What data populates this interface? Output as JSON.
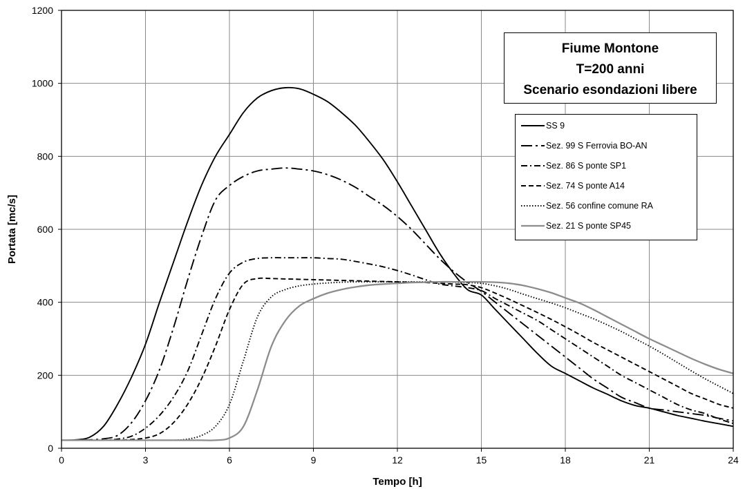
{
  "chart_data": {
    "type": "line",
    "title_lines": [
      "Fiume Montone",
      "T=200 anni",
      "Scenario esondazioni libere"
    ],
    "xlabel": "Tempo [h]",
    "ylabel": "Portata [mc/s]",
    "xlim": [
      0,
      24
    ],
    "ylim": [
      0,
      1200
    ],
    "xticks": [
      0,
      3,
      6,
      9,
      12,
      15,
      18,
      21,
      24
    ],
    "yticks": [
      0,
      200,
      400,
      600,
      800,
      1000,
      1200
    ],
    "grid": true,
    "legend_position": "top-right",
    "x": [
      0,
      0.5,
      1,
      1.5,
      2,
      2.5,
      3,
      3.5,
      4,
      4.5,
      5,
      5.5,
      6,
      6.5,
      7,
      7.5,
      8,
      8.5,
      9,
      9.5,
      10,
      10.5,
      11,
      11.5,
      12,
      12.5,
      13,
      13.5,
      14,
      14.5,
      15,
      15.5,
      16,
      16.5,
      17,
      17.5,
      18,
      18.5,
      19,
      19.5,
      20,
      20.5,
      21,
      21.5,
      22,
      22.5,
      23,
      23.5,
      24
    ],
    "series": [
      {
        "name": "SS 9",
        "color": "#000000",
        "dash": "solid",
        "values": [
          22,
          23,
          30,
          60,
          120,
          195,
          285,
          400,
          510,
          620,
          720,
          800,
          860,
          920,
          960,
          980,
          988,
          985,
          970,
          950,
          920,
          885,
          840,
          790,
          730,
          665,
          600,
          535,
          480,
          435,
          420,
          380,
          340,
          300,
          260,
          225,
          205,
          185,
          165,
          148,
          130,
          117,
          110,
          100,
          90,
          82,
          74,
          67,
          60
        ]
      },
      {
        "name": "Sez. 99 S Ferrovia BO-AN",
        "color": "#000000",
        "dash": "longdash-dot",
        "values": [
          22,
          22,
          23,
          26,
          35,
          70,
          130,
          215,
          330,
          460,
          580,
          680,
          720,
          745,
          760,
          765,
          768,
          765,
          760,
          750,
          735,
          715,
          690,
          665,
          635,
          600,
          560,
          520,
          485,
          455,
          430,
          400,
          370,
          340,
          310,
          280,
          250,
          220,
          190,
          165,
          140,
          125,
          110,
          105,
          100,
          95,
          90,
          82,
          75
        ]
      },
      {
        "name": "Sez. 86 S ponte SP1",
        "color": "#000000",
        "dash": "dashdot",
        "values": [
          22,
          22,
          22,
          22,
          25,
          33,
          55,
          90,
          140,
          210,
          310,
          410,
          480,
          510,
          520,
          522,
          522,
          522,
          522,
          520,
          518,
          512,
          505,
          497,
          487,
          475,
          462,
          450,
          445,
          440,
          432,
          410,
          390,
          370,
          350,
          325,
          300,
          275,
          250,
          225,
          200,
          180,
          160,
          140,
          120,
          105,
          95,
          80,
          68
        ]
      },
      {
        "name": "Sez. 74 S ponte A14",
        "color": "#000000",
        "dash": "dash",
        "values": [
          22,
          22,
          22,
          22,
          22,
          24,
          28,
          40,
          70,
          120,
          190,
          280,
          380,
          450,
          465,
          465,
          464,
          463,
          462,
          461,
          460,
          459,
          458,
          457,
          456,
          455,
          454,
          452,
          450,
          448,
          440,
          425,
          408,
          390,
          372,
          353,
          333,
          312,
          290,
          270,
          250,
          230,
          210,
          190,
          170,
          150,
          135,
          120,
          110
        ]
      },
      {
        "name": "Sez. 56 confine comune RA",
        "color": "#000000",
        "dash": "dot",
        "values": [
          22,
          22,
          22,
          22,
          22,
          22,
          22,
          22,
          22,
          25,
          35,
          60,
          120,
          240,
          360,
          415,
          435,
          445,
          450,
          453,
          455,
          456,
          456,
          456,
          456,
          456,
          456,
          456,
          455,
          454,
          452,
          445,
          435,
          422,
          410,
          398,
          385,
          370,
          355,
          338,
          320,
          300,
          280,
          258,
          235,
          212,
          190,
          170,
          150
        ]
      },
      {
        "name": "Sez. 21 S ponte SP45",
        "color": "#8c8c8c",
        "dash": "solid",
        "values": [
          22,
          22,
          22,
          22,
          22,
          22,
          22,
          22,
          22,
          22,
          22,
          22,
          28,
          60,
          160,
          280,
          350,
          390,
          410,
          425,
          435,
          442,
          447,
          450,
          452,
          454,
          455,
          456,
          456,
          456,
          456,
          455,
          452,
          446,
          437,
          426,
          412,
          398,
          380,
          360,
          340,
          320,
          300,
          282,
          264,
          246,
          230,
          216,
          205
        ]
      }
    ]
  }
}
